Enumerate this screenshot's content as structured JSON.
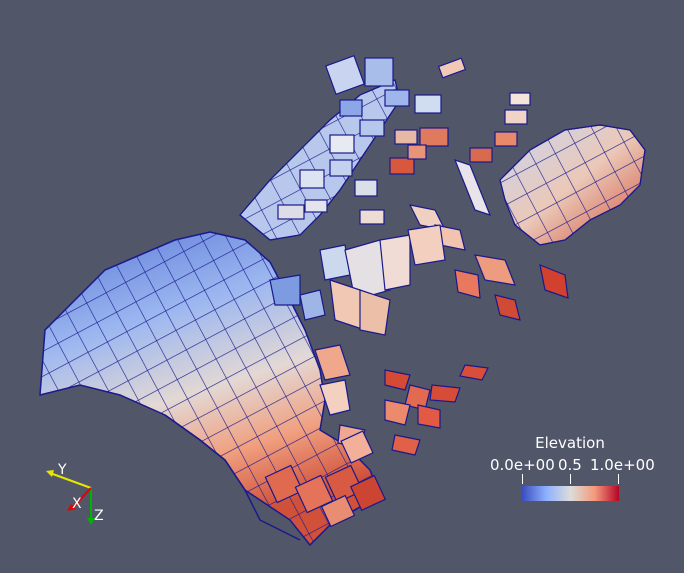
{
  "legend": {
    "title": "Elevation",
    "min_label": "0.0e+00",
    "mid_label": "0.5",
    "max_label": "1.0e+00",
    "colormap": [
      "#3b4cc0",
      "#8db0fe",
      "#dddcdc",
      "#f49a7b",
      "#b40426"
    ]
  },
  "orientation_axes": {
    "x_label": "X",
    "y_label": "Y",
    "z_label": "Z",
    "x_color": "#e60000",
    "y_color": "#e6e600",
    "z_color": "#00b300"
  },
  "colors": {
    "background": "#525669",
    "mesh_edges": "#1a1a8c"
  }
}
